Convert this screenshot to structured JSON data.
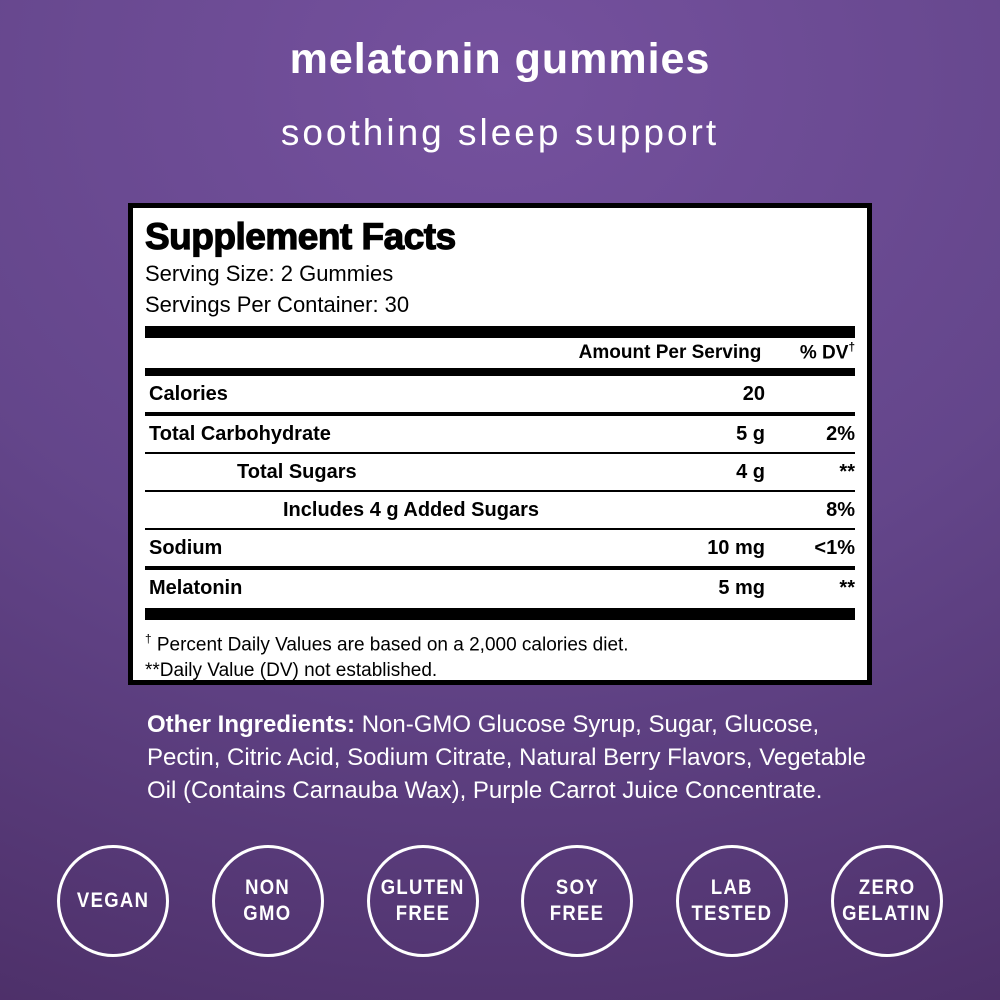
{
  "theme": {
    "bg_top": "#75519e",
    "bg_mid": "#64468b",
    "bg_bottom": "#472a60",
    "text_white": "#ffffff",
    "panel_bg": "#ffffff",
    "panel_border": "#000000"
  },
  "header": {
    "title": "melatonin gummies",
    "subtitle": "soothing sleep support"
  },
  "supplement_facts": {
    "title": "Supplement Facts",
    "serving_size": "Serving Size: 2 Gummies",
    "servings_per_container": "Servings Per Container: 30",
    "columns": {
      "amount": "Amount Per Serving",
      "dv": "% DV",
      "dv_sup": "†"
    },
    "rows": [
      {
        "name": "Calories",
        "amount": "20",
        "dv": ""
      },
      {
        "name": "Total Carbohydrate",
        "amount": "5 g",
        "dv": "2%"
      },
      {
        "name": "Total Sugars",
        "amount": "4 g",
        "dv": "**"
      },
      {
        "name": "Includes 4 g Added Sugars",
        "amount": "",
        "dv": "8%"
      },
      {
        "name": "Sodium",
        "amount": "10 mg",
        "dv": "<1%"
      },
      {
        "name": "Melatonin",
        "amount": "5 mg",
        "dv": "**"
      }
    ],
    "footnotes": [
      {
        "marker": "†",
        "text": " Percent Daily Values are based on a 2,000 calories diet."
      },
      {
        "marker": "**",
        "text": "Daily Value (DV) not established."
      }
    ]
  },
  "other_ingredients": {
    "label": "Other Ingredients:",
    "text": " Non-GMO Glucose Syrup, Sugar, Glucose, Pectin, Citric Acid, Sodium Citrate, Natural Berry Flavors, Vegetable Oil (Contains Carnauba Wax), Purple Carrot Juice Concentrate."
  },
  "badges": [
    {
      "lines": [
        "VEGAN"
      ]
    },
    {
      "lines": [
        "NON",
        "GMO"
      ]
    },
    {
      "lines": [
        "GLUTEN",
        "FREE"
      ]
    },
    {
      "lines": [
        "SOY",
        "FREE"
      ]
    },
    {
      "lines": [
        "LAB",
        "TESTED"
      ]
    },
    {
      "lines": [
        "ZERO",
        "GELATIN"
      ]
    }
  ]
}
